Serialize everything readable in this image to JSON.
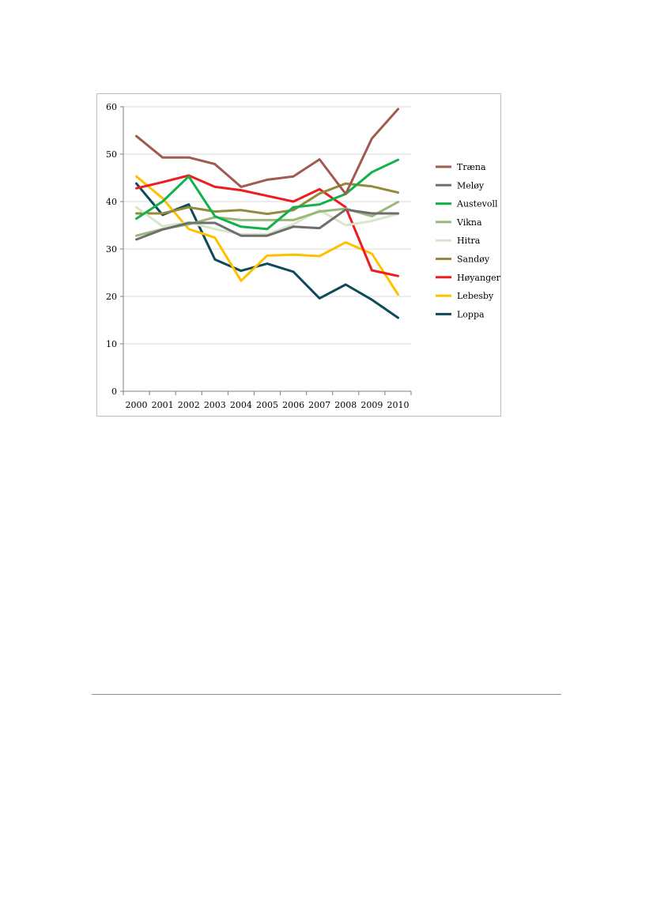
{
  "chart_data": {
    "type": "line",
    "title": "",
    "xlabel": "",
    "ylabel": "",
    "x": [
      "2000",
      "2001",
      "2002",
      "2003",
      "2004",
      "2005",
      "2006",
      "2007",
      "2008",
      "2009",
      "2010"
    ],
    "ylim": [
      0,
      60
    ],
    "yticks": [
      0,
      10,
      20,
      30,
      40,
      50,
      60
    ],
    "grid": true,
    "legend": "right",
    "series": [
      {
        "name": "Træna",
        "color": "#a05a4f",
        "values": [
          53.8,
          49.3,
          49.3,
          47.9,
          43.1,
          44.6,
          45.3,
          48.9,
          41.6,
          53.3,
          59.5
        ]
      },
      {
        "name": "Meløy",
        "color": "#6e6e6e",
        "values": [
          32.0,
          34.1,
          35.5,
          35.5,
          32.8,
          32.8,
          34.7,
          34.4,
          38.3,
          37.5,
          37.5
        ]
      },
      {
        "name": "Austevoll",
        "color": "#14b04a",
        "values": [
          36.4,
          40.0,
          45.3,
          36.9,
          34.7,
          34.2,
          38.8,
          39.4,
          41.6,
          46.2,
          48.8
        ]
      },
      {
        "name": "Vikna",
        "color": "#9ab87c",
        "values": [
          32.8,
          34.2,
          35.2,
          36.7,
          36.1,
          36.1,
          36.1,
          37.9,
          38.5,
          36.9,
          39.9
        ]
      },
      {
        "name": "Hitra",
        "color": "#d8e6c8",
        "values": [
          38.8,
          34.8,
          35.6,
          34.2,
          33.1,
          33.1,
          35.2,
          38.2,
          35.0,
          35.9,
          37.4
        ]
      },
      {
        "name": "Sandøy",
        "color": "#948a3c",
        "values": [
          37.5,
          37.5,
          38.8,
          37.9,
          38.2,
          37.4,
          38.2,
          41.7,
          43.8,
          43.2,
          41.9
        ]
      },
      {
        "name": "Høyanger",
        "color": "#ee1c1c",
        "values": [
          42.8,
          44.1,
          45.5,
          43.1,
          42.4,
          41.2,
          40.0,
          42.6,
          38.8,
          25.5,
          24.3
        ]
      },
      {
        "name": "Lebesby",
        "color": "#ffc000",
        "values": [
          45.3,
          40.7,
          34.2,
          32.4,
          23.3,
          28.6,
          28.8,
          28.5,
          31.4,
          29.0,
          20.4
        ]
      },
      {
        "name": "Loppa",
        "color": "#0d4a5a",
        "values": [
          43.8,
          37.2,
          39.4,
          27.8,
          25.4,
          26.9,
          25.2,
          19.6,
          22.5,
          19.3,
          15.5
        ]
      }
    ]
  }
}
